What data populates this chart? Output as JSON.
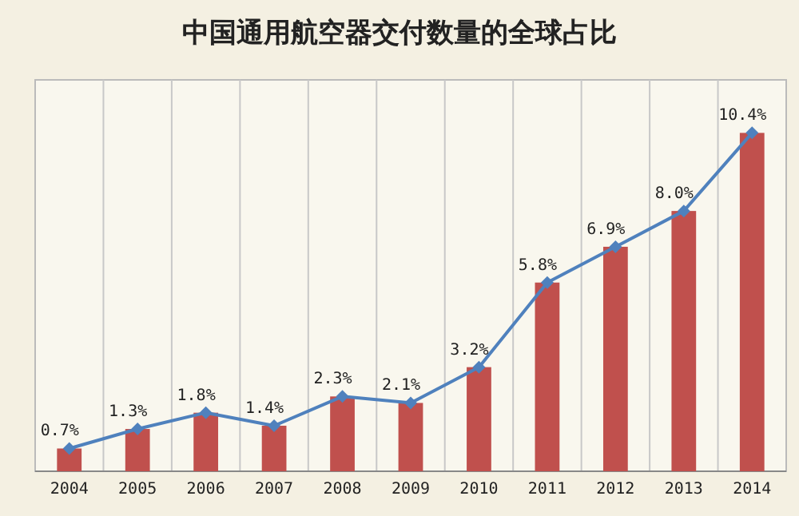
{
  "chart_data": {
    "type": "bar",
    "title": "中国通用航空器交付数量的全球占比",
    "categories": [
      "2004",
      "2005",
      "2006",
      "2007",
      "2008",
      "2009",
      "2010",
      "2011",
      "2012",
      "2013",
      "2014"
    ],
    "series": [
      {
        "color": "#c0504d",
        "values": [
          0.7,
          1.3,
          1.8,
          1.4,
          2.3,
          2.1,
          3.2,
          5.8,
          6.9,
          8.0,
          10.4
        ],
        "value_labels": [
          "0.7%",
          "1.3%",
          "1.8%",
          "1.4%",
          "2.3%",
          "2.1%",
          "3.2%",
          "5.8%",
          "6.9%",
          "8.0%",
          "10.4%"
        ]
      },
      {
        "type": "line",
        "color": "#4f81bd",
        "marker": "diamond",
        "values": [
          0.7,
          1.3,
          1.8,
          1.4,
          2.3,
          2.1,
          3.2,
          5.8,
          6.9,
          8.0,
          10.4
        ]
      }
    ],
    "grid": "x"
  }
}
